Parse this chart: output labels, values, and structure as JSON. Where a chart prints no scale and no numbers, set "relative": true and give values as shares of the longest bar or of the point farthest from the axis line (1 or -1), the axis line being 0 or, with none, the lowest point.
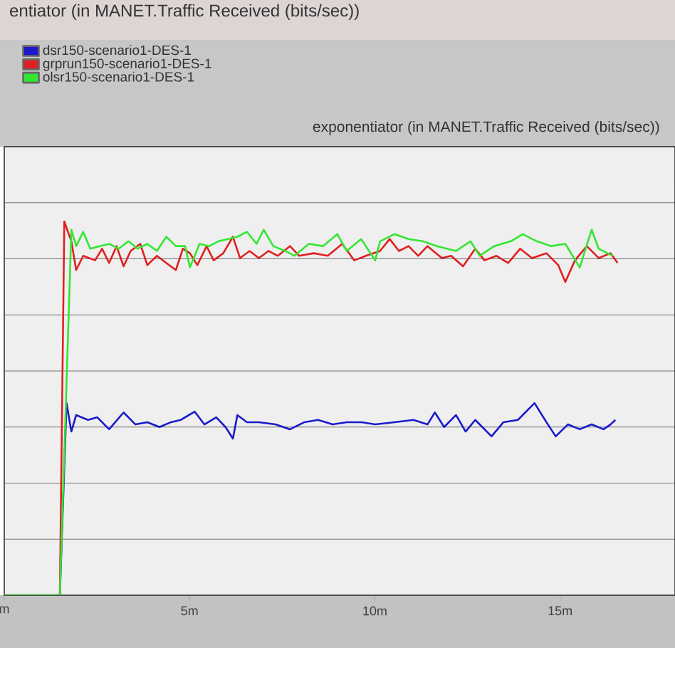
{
  "chart_data": {
    "type": "line",
    "title": "entiator (in MANET.Traffic Received (bits/sec))",
    "subtitle": "exponentiator (in MANET.Traffic Received (bits/sec))",
    "relative": true,
    "xlim": [
      0,
      18.1
    ],
    "xticks": [
      {
        "value": 0,
        "label": "m"
      },
      {
        "value": 5,
        "label": "5m"
      },
      {
        "value": 10,
        "label": "10m"
      },
      {
        "value": 15,
        "label": "15m"
      }
    ],
    "grid": "y",
    "legend": "top left",
    "marker": "none",
    "line_style": "solid",
    "series": [
      {
        "name": "dsr150-scenario1-DES-1",
        "color": "#1a1acc",
        "x": [
          0,
          1.5,
          1.68,
          1.81,
          1.94,
          2.26,
          2.51,
          2.83,
          3.22,
          3.54,
          3.86,
          4.19,
          4.5,
          4.76,
          5.14,
          5.4,
          5.72,
          5.97,
          6.17,
          6.29,
          6.55,
          6.87,
          7.32,
          7.71,
          8.1,
          8.47,
          8.86,
          9.24,
          9.63,
          10.01,
          10.53,
          11.04,
          11.42,
          11.62,
          11.87,
          12.19,
          12.45,
          12.71,
          13.15,
          13.47,
          13.86,
          14.31,
          14.63,
          14.88,
          15.21,
          15.53,
          15.85,
          16.17,
          16.36,
          16.49
        ],
        "values": [
          0,
          0,
          0.514,
          0.438,
          0.482,
          0.469,
          0.476,
          0.444,
          0.489,
          0.457,
          0.463,
          0.45,
          0.463,
          0.469,
          0.491,
          0.457,
          0.476,
          0.45,
          0.419,
          0.482,
          0.463,
          0.463,
          0.457,
          0.444,
          0.463,
          0.469,
          0.457,
          0.463,
          0.463,
          0.457,
          0.463,
          0.469,
          0.457,
          0.489,
          0.45,
          0.482,
          0.438,
          0.469,
          0.425,
          0.463,
          0.469,
          0.514,
          0.463,
          0.425,
          0.457,
          0.444,
          0.457,
          0.444,
          0.457,
          0.469
        ]
      },
      {
        "name": "grprun150-scenario1-DES-1",
        "color": "#e02020",
        "x": [
          0,
          1.5,
          1.62,
          1.81,
          1.94,
          2.13,
          2.45,
          2.64,
          2.83,
          3.03,
          3.22,
          3.41,
          3.67,
          3.86,
          4.12,
          4.37,
          4.63,
          4.82,
          5.01,
          5.21,
          5.46,
          5.65,
          5.91,
          6.17,
          6.36,
          6.62,
          6.87,
          7.13,
          7.38,
          7.71,
          7.96,
          8.35,
          8.73,
          9.12,
          9.44,
          9.76,
          10.14,
          10.4,
          10.65,
          10.91,
          11.17,
          11.42,
          11.81,
          12.06,
          12.38,
          12.71,
          12.96,
          13.28,
          13.6,
          13.92,
          14.24,
          14.63,
          14.95,
          15.14,
          15.4,
          15.72,
          16.04,
          16.36,
          16.55
        ],
        "values": [
          0,
          0,
          1.0,
          0.947,
          0.87,
          0.908,
          0.896,
          0.927,
          0.889,
          0.934,
          0.88,
          0.921,
          0.94,
          0.883,
          0.908,
          0.889,
          0.87,
          0.927,
          0.915,
          0.883,
          0.934,
          0.896,
          0.915,
          0.959,
          0.902,
          0.921,
          0.902,
          0.921,
          0.908,
          0.934,
          0.908,
          0.915,
          0.908,
          0.94,
          0.896,
          0.908,
          0.921,
          0.953,
          0.921,
          0.934,
          0.908,
          0.934,
          0.902,
          0.908,
          0.88,
          0.927,
          0.896,
          0.908,
          0.889,
          0.927,
          0.902,
          0.915,
          0.883,
          0.838,
          0.896,
          0.934,
          0.902,
          0.915,
          0.889
        ]
      },
      {
        "name": "olsr150-scenario1-DES-1",
        "color": "#33e633",
        "x": [
          0,
          1.5,
          1.81,
          1.94,
          2.13,
          2.32,
          2.58,
          2.83,
          3.09,
          3.35,
          3.6,
          3.86,
          4.12,
          4.37,
          4.63,
          4.88,
          5.01,
          5.27,
          5.53,
          5.78,
          6.04,
          6.29,
          6.55,
          6.81,
          7.0,
          7.26,
          7.58,
          7.83,
          8.22,
          8.6,
          8.99,
          9.24,
          9.63,
          10.01,
          10.14,
          10.53,
          10.91,
          11.29,
          11.68,
          12.19,
          12.58,
          12.83,
          13.22,
          13.67,
          13.99,
          14.37,
          14.76,
          15.14,
          15.53,
          15.85,
          16.04,
          16.42
        ],
        "values": [
          0,
          0,
          0.978,
          0.934,
          0.972,
          0.927,
          0.934,
          0.94,
          0.927,
          0.947,
          0.927,
          0.94,
          0.921,
          0.959,
          0.934,
          0.934,
          0.877,
          0.94,
          0.934,
          0.947,
          0.953,
          0.959,
          0.972,
          0.94,
          0.978,
          0.934,
          0.921,
          0.908,
          0.94,
          0.934,
          0.966,
          0.921,
          0.953,
          0.896,
          0.947,
          0.966,
          0.953,
          0.947,
          0.934,
          0.921,
          0.947,
          0.908,
          0.934,
          0.947,
          0.966,
          0.947,
          0.934,
          0.94,
          0.877,
          0.978,
          0.927,
          0.908
        ]
      }
    ]
  }
}
